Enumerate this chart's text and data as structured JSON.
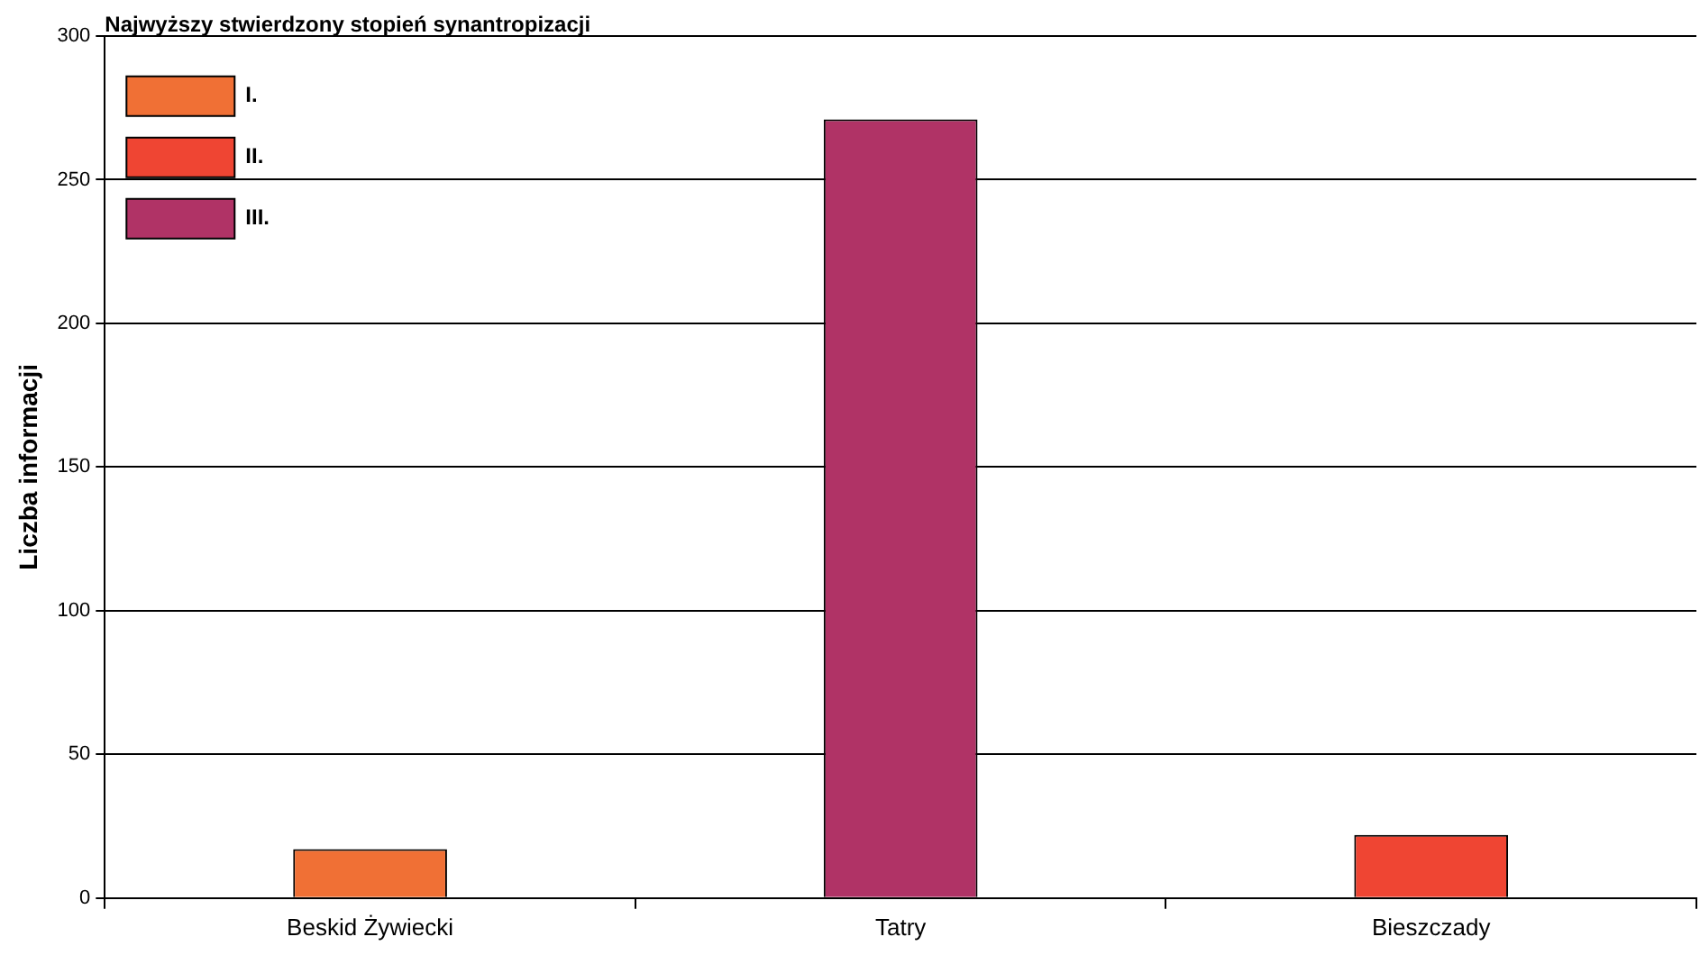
{
  "chart_data": {
    "type": "bar",
    "ylabel": "Liczba informacji",
    "legend_title": "Najwyższy stwierdzony stopień synantropizacji",
    "categories": [
      "Beskid Żywiecki",
      "Tatry",
      "Bieszczady"
    ],
    "series": [
      {
        "name": "I.",
        "color": "#f07035",
        "values": [
          17,
          null,
          null
        ]
      },
      {
        "name": "II.",
        "color": "#ef4533",
        "values": [
          null,
          null,
          22
        ]
      },
      {
        "name": "III.",
        "color": "#b03366",
        "values": [
          null,
          271,
          null
        ]
      }
    ],
    "stacked": true,
    "ylim": [
      0,
      300
    ],
    "yticks": [
      0,
      50,
      100,
      150,
      200,
      250,
      300
    ],
    "grid": "y",
    "legend": "top left"
  }
}
